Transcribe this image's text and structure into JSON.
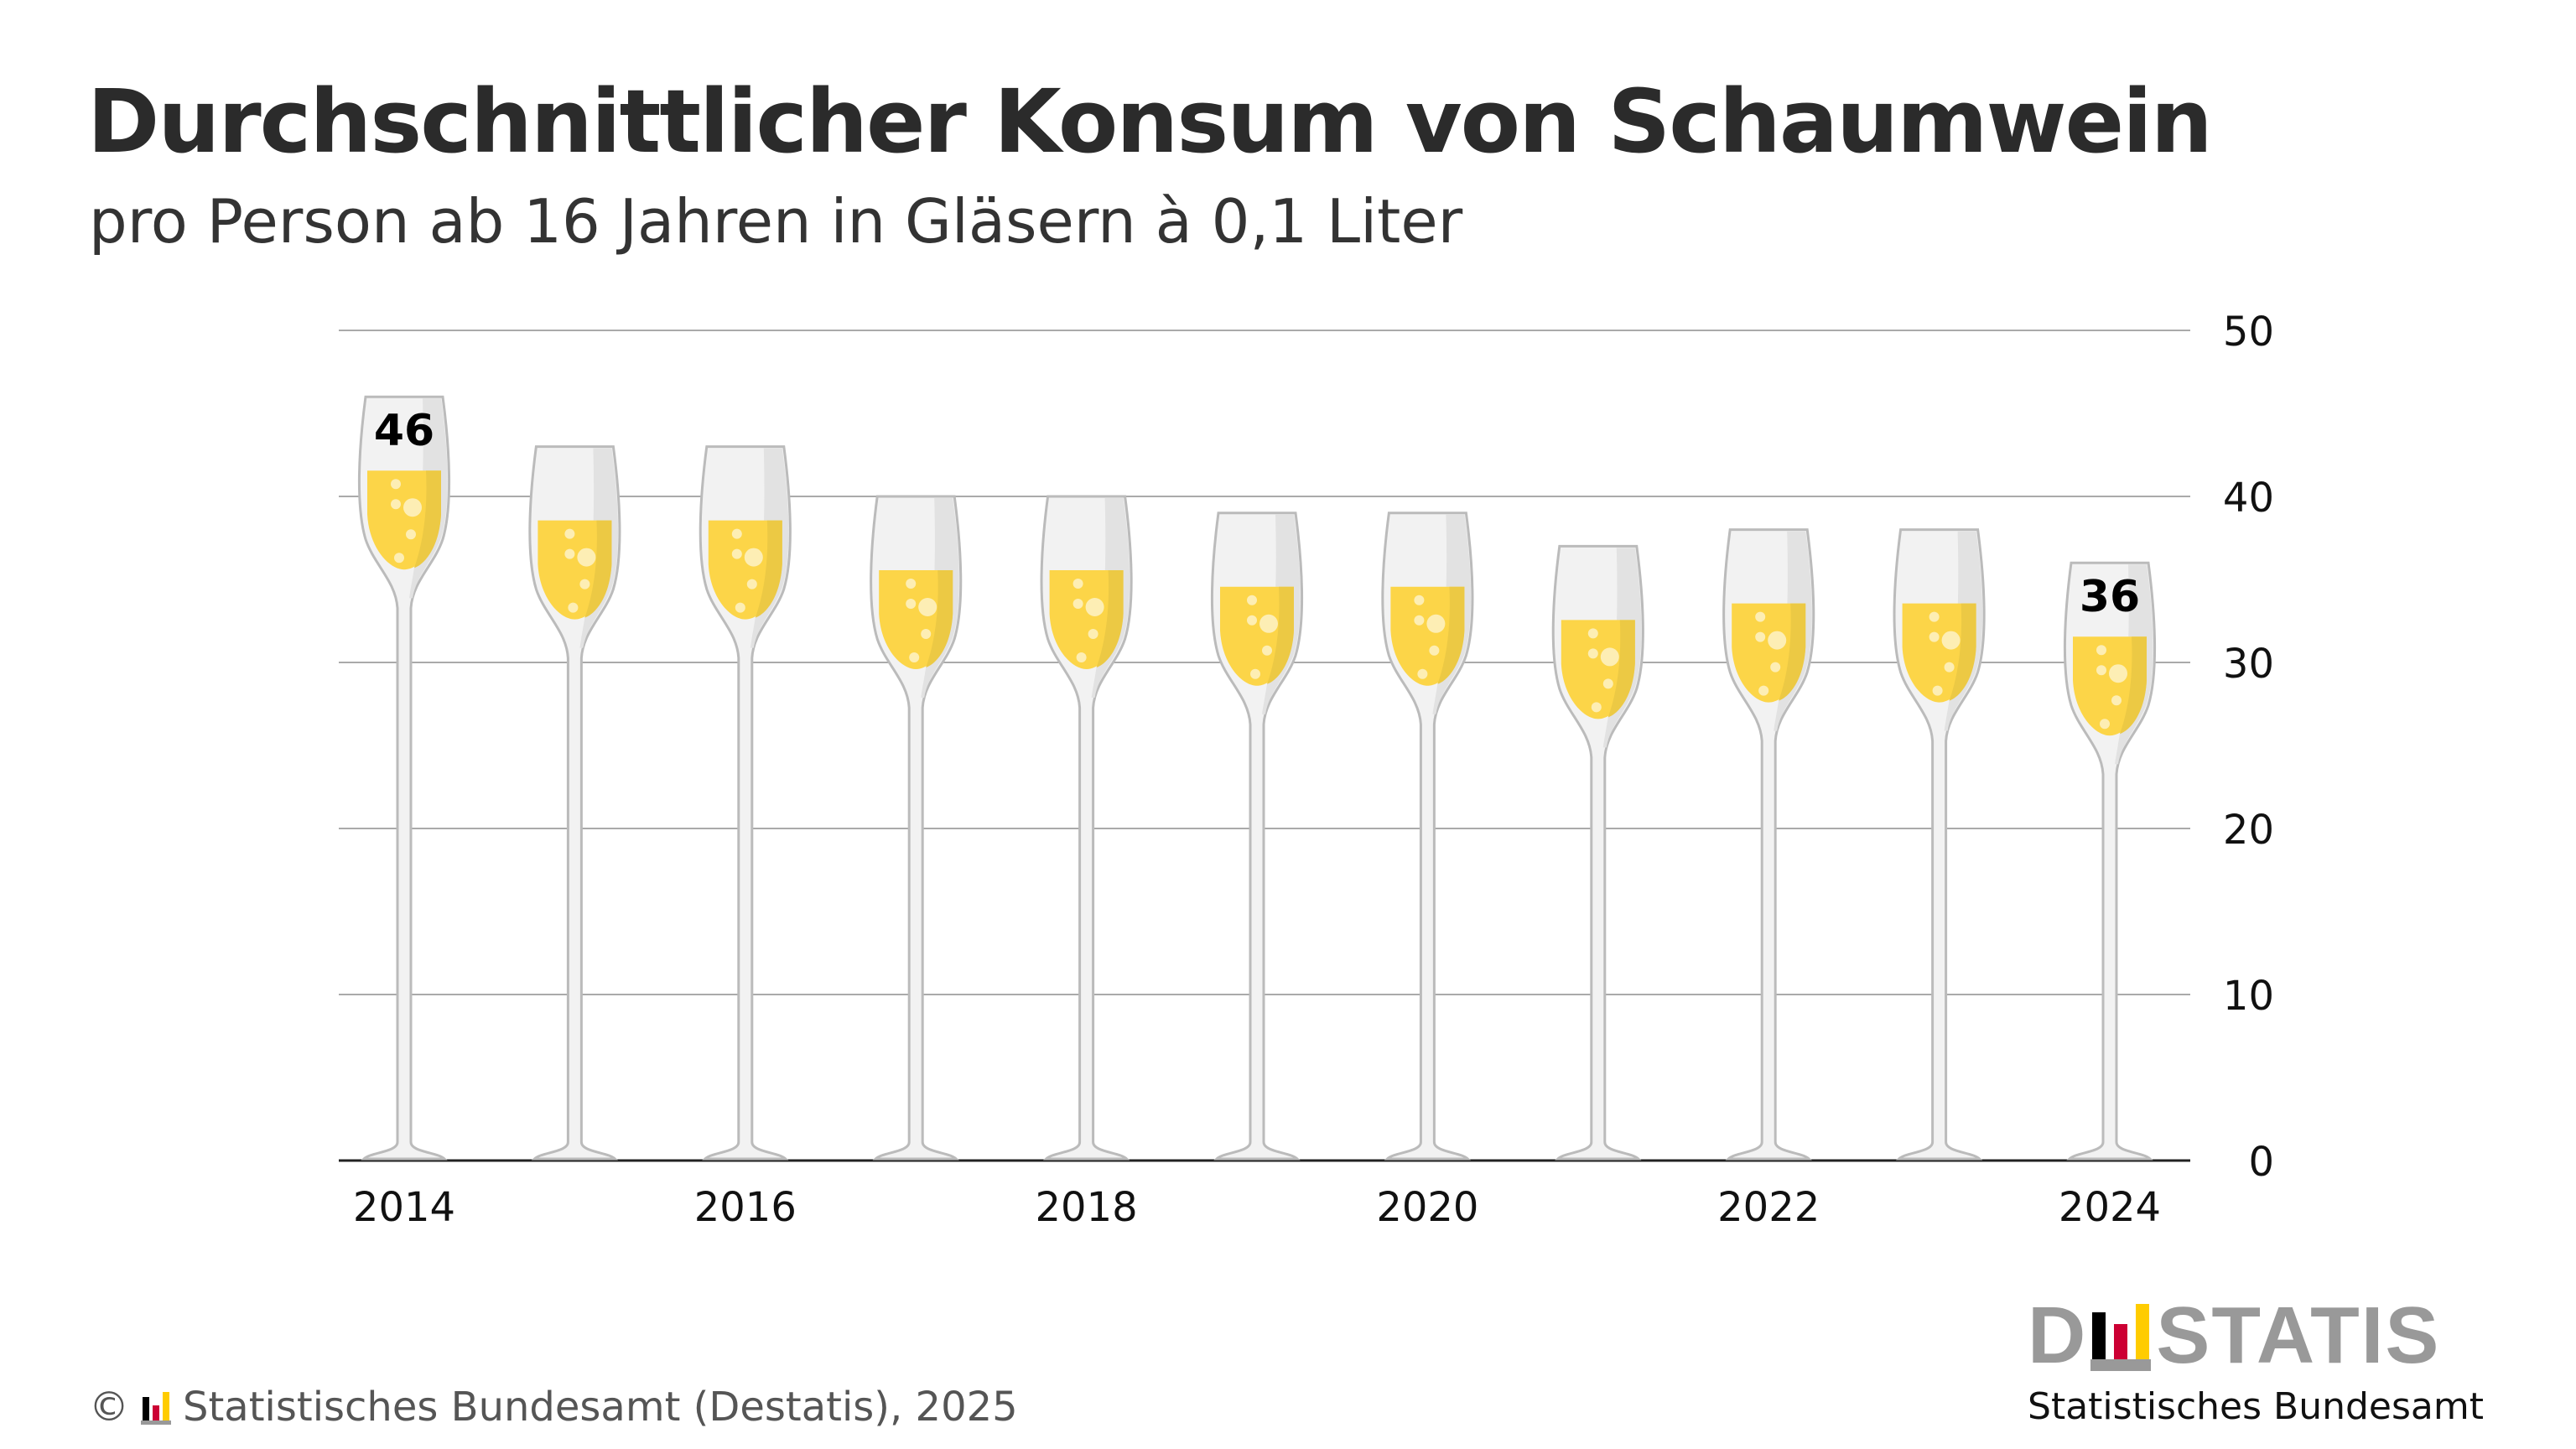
{
  "title": "Durchschnittlicher Konsum von Schaumwein",
  "subtitle": "pro Person ab 16 Jahren in Gläsern à 0,1 Liter",
  "footer": {
    "copyright": "©",
    "text": "Statistisches Bundesamt (Destatis), 2025"
  },
  "logo": {
    "word": "DESTATIS",
    "word_left": "D",
    "word_right": "STATIS",
    "sub": "Statistisches Bundesamt",
    "bar_colors": [
      "#000000",
      "#cc0033",
      "#ffcc00"
    ]
  },
  "chart_data": {
    "type": "bar",
    "mark": "champagne-glass",
    "categories": [
      "2014",
      "2015",
      "2016",
      "2017",
      "2018",
      "2019",
      "2020",
      "2021",
      "2022",
      "2023",
      "2024"
    ],
    "values": [
      46,
      43,
      43,
      40,
      40,
      39,
      39,
      37,
      38,
      38,
      36
    ],
    "x_tick_labels": [
      "2014",
      "2016",
      "2018",
      "2020",
      "2022",
      "2024"
    ],
    "y_ticks": [
      0,
      10,
      20,
      30,
      40,
      50
    ],
    "ylim": [
      0,
      50
    ],
    "y_axis_side": "right",
    "grid": true,
    "data_labels": [
      {
        "category": "2014",
        "text": "46"
      },
      {
        "category": "2024",
        "text": "36"
      }
    ],
    "colors": {
      "glass": "#f2f2f2",
      "glass_outline": "#bbbbbb",
      "liquid": "#fcd548",
      "bubbles": "#fdeeb4",
      "grid": "#aaaaaa"
    }
  }
}
